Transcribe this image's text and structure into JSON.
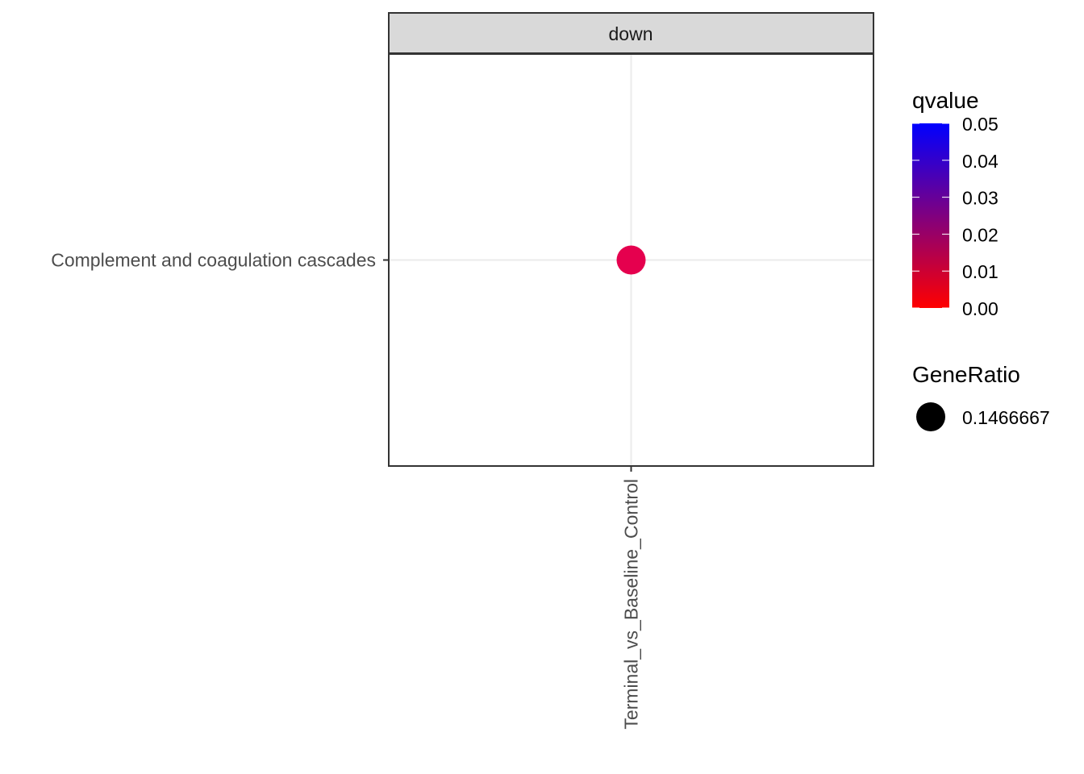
{
  "chart_data": {
    "type": "scatter",
    "facet": "down",
    "x_categories": [
      "Terminal_vs_Baseline_Control"
    ],
    "y_categories": [
      "Complement and coagulation cascades"
    ],
    "points": [
      {
        "x": "Terminal_vs_Baseline_Control",
        "y": "Complement and coagulation cascades",
        "qvalue": 0.0097,
        "GeneRatio": 0.1466667,
        "color": "#E5004E"
      }
    ],
    "color_legend": {
      "title": "qvalue",
      "ticks": [
        "0.05",
        "0.04",
        "0.03",
        "0.02",
        "0.01",
        "0.00"
      ],
      "range": [
        0,
        0.05
      ],
      "low_color": "#FF0000",
      "high_color": "#0000FF"
    },
    "size_legend": {
      "title": "GeneRatio",
      "entries": [
        "0.1466667"
      ],
      "color": "#000000"
    },
    "grid": true,
    "colors": {
      "strip_fill": "#D9D9D9",
      "panel_border": "#333333",
      "grid": "#EBEBEB",
      "axis_text": "#4D4D4D"
    }
  }
}
